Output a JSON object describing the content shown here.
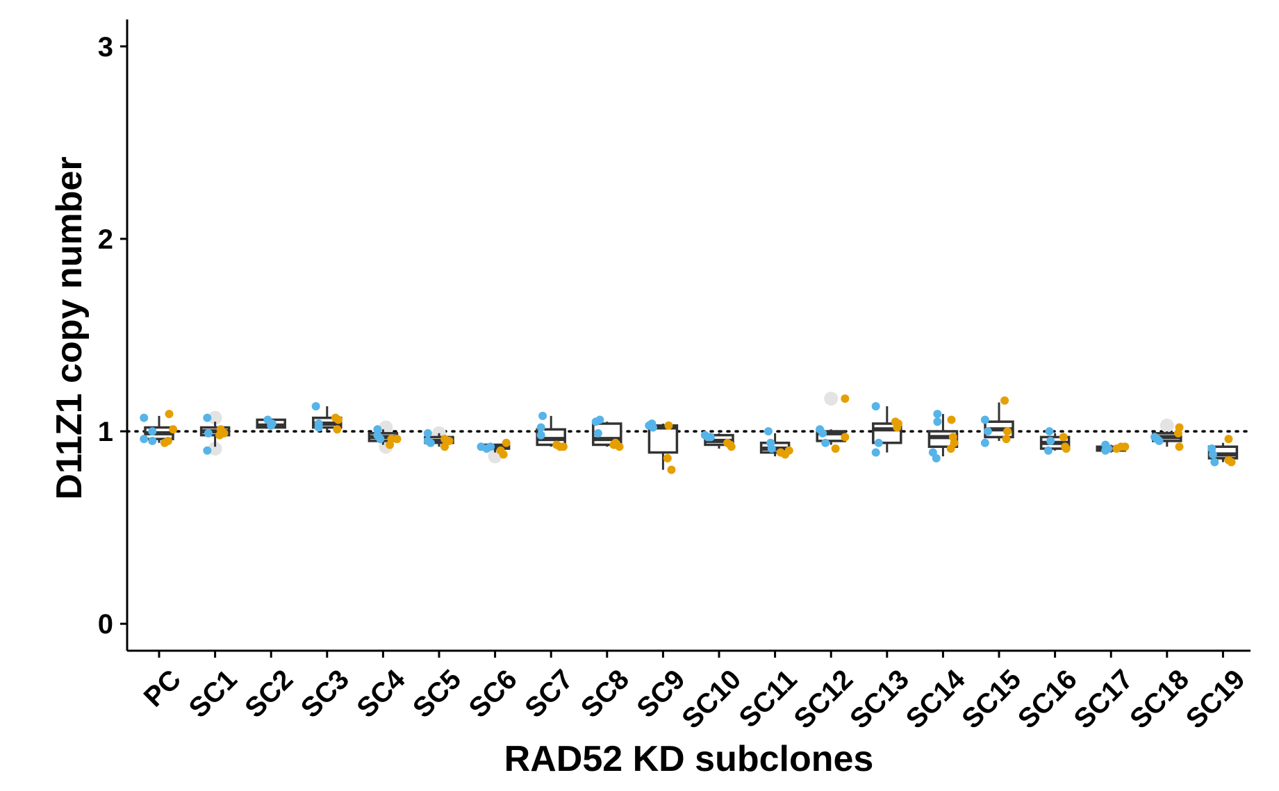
{
  "chart_data": {
    "type": "box",
    "xlabel": "RAD52 KD subclones",
    "ylabel": "D11Z1 copy number",
    "ylim": [
      -0.14,
      3.14
    ],
    "yticks": [
      0,
      1,
      2,
      3
    ],
    "reference_line": 1,
    "grid": false,
    "legend": "none",
    "colors": {
      "series_a": "#56B4E9",
      "series_b": "#E69F00",
      "outlier": "#E3E3E3",
      "box": "#333333"
    },
    "categories": [
      "PC",
      "SC1",
      "SC2",
      "SC3",
      "SC4",
      "SC5",
      "SC6",
      "SC7",
      "SC8",
      "SC9",
      "SC10",
      "SC11",
      "SC12",
      "SC13",
      "SC14",
      "SC15",
      "SC16",
      "SC17",
      "SC18",
      "SC19"
    ],
    "boxes": [
      {
        "q1": 0.96,
        "median": 0.99,
        "q3": 1.02,
        "lo": 0.94,
        "hi": 1.08
      },
      {
        "q1": 0.98,
        "median": 1.0,
        "q3": 1.02,
        "lo": 0.92,
        "hi": 1.05
      },
      {
        "q1": 1.02,
        "median": 1.03,
        "q3": 1.06,
        "lo": 1.02,
        "hi": 1.06
      },
      {
        "q1": 1.02,
        "median": 1.04,
        "q3": 1.07,
        "lo": 1.0,
        "hi": 1.13
      },
      {
        "q1": 0.95,
        "median": 0.97,
        "q3": 0.99,
        "lo": 0.93,
        "hi": 1.01
      },
      {
        "q1": 0.94,
        "median": 0.95,
        "q3": 0.97,
        "lo": 0.92,
        "hi": 0.99
      },
      {
        "q1": 0.91,
        "median": 0.92,
        "q3": 0.93,
        "lo": 0.89,
        "hi": 0.93
      },
      {
        "q1": 0.93,
        "median": 0.96,
        "q3": 1.01,
        "lo": 0.92,
        "hi": 1.08
      },
      {
        "q1": 0.93,
        "median": 0.96,
        "q3": 1.04,
        "lo": 0.92,
        "hi": 1.05
      },
      {
        "q1": 0.89,
        "median": 1.02,
        "q3": 1.03,
        "lo": 0.8,
        "hi": 1.04
      },
      {
        "q1": 0.93,
        "median": 0.95,
        "q3": 0.98,
        "lo": 0.91,
        "hi": 0.99
      },
      {
        "q1": 0.89,
        "median": 0.91,
        "q3": 0.94,
        "lo": 0.87,
        "hi": 0.99
      },
      {
        "q1": 0.95,
        "median": 0.99,
        "q3": 1.0,
        "lo": 0.93,
        "hi": 1.01
      },
      {
        "q1": 0.94,
        "median": 1.01,
        "q3": 1.04,
        "lo": 0.89,
        "hi": 1.13
      },
      {
        "q1": 0.92,
        "median": 0.97,
        "q3": 1.0,
        "lo": 0.87,
        "hi": 1.09
      },
      {
        "q1": 0.97,
        "median": 1.01,
        "q3": 1.05,
        "lo": 0.95,
        "hi": 1.15
      },
      {
        "q1": 0.91,
        "median": 0.94,
        "q3": 0.97,
        "lo": 0.9,
        "hi": 0.99
      },
      {
        "q1": 0.9,
        "median": 0.91,
        "q3": 0.92,
        "lo": 0.89,
        "hi": 0.93
      },
      {
        "q1": 0.95,
        "median": 0.97,
        "q3": 0.99,
        "lo": 0.92,
        "hi": 1.0
      },
      {
        "q1": 0.86,
        "median": 0.88,
        "q3": 0.92,
        "lo": 0.84,
        "hi": 0.94
      }
    ],
    "points_a": [
      {
        "i": 0,
        "dx": -0.27,
        "y": 1.07
      },
      {
        "i": 0,
        "dx": -0.27,
        "y": 0.96
      },
      {
        "i": 0,
        "dx": -0.12,
        "y": 1.0
      },
      {
        "i": 0,
        "dx": -0.12,
        "y": 0.95
      },
      {
        "i": 1,
        "dx": -0.14,
        "y": 1.07
      },
      {
        "i": 1,
        "dx": -0.14,
        "y": 0.9
      },
      {
        "i": 1,
        "dx": -0.12,
        "y": 0.99
      },
      {
        "i": 2,
        "dx": -0.06,
        "y": 1.06
      },
      {
        "i": 2,
        "dx": 0.02,
        "y": 1.04
      },
      {
        "i": 2,
        "dx": 0.0,
        "y": 1.03
      },
      {
        "i": 3,
        "dx": -0.2,
        "y": 1.13
      },
      {
        "i": 3,
        "dx": -0.15,
        "y": 1.04
      },
      {
        "i": 3,
        "dx": -0.15,
        "y": 1.02
      },
      {
        "i": 4,
        "dx": -0.1,
        "y": 1.01
      },
      {
        "i": 4,
        "dx": -0.1,
        "y": 0.98
      },
      {
        "i": 4,
        "dx": -0.05,
        "y": 0.96
      },
      {
        "i": 5,
        "dx": -0.2,
        "y": 0.99
      },
      {
        "i": 5,
        "dx": -0.2,
        "y": 0.95
      },
      {
        "i": 5,
        "dx": -0.15,
        "y": 0.94
      },
      {
        "i": 6,
        "dx": -0.25,
        "y": 0.92
      },
      {
        "i": 6,
        "dx": -0.15,
        "y": 0.91
      },
      {
        "i": 6,
        "dx": -0.08,
        "y": 0.92
      },
      {
        "i": 7,
        "dx": -0.15,
        "y": 1.08
      },
      {
        "i": 7,
        "dx": -0.18,
        "y": 1.02
      },
      {
        "i": 7,
        "dx": -0.18,
        "y": 0.98
      },
      {
        "i": 8,
        "dx": -0.2,
        "y": 1.05
      },
      {
        "i": 8,
        "dx": -0.13,
        "y": 1.06
      },
      {
        "i": 8,
        "dx": -0.16,
        "y": 0.99
      },
      {
        "i": 9,
        "dx": -0.25,
        "y": 1.03
      },
      {
        "i": 9,
        "dx": -0.2,
        "y": 1.04
      },
      {
        "i": 9,
        "dx": -0.18,
        "y": 1.02
      },
      {
        "i": 10,
        "dx": -0.25,
        "y": 0.98
      },
      {
        "i": 10,
        "dx": -0.2,
        "y": 0.97
      },
      {
        "i": 10,
        "dx": -0.15,
        "y": 0.97
      },
      {
        "i": 11,
        "dx": -0.12,
        "y": 1.0
      },
      {
        "i": 11,
        "dx": -0.08,
        "y": 0.94
      },
      {
        "i": 11,
        "dx": -0.06,
        "y": 0.91
      },
      {
        "i": 12,
        "dx": -0.2,
        "y": 1.01
      },
      {
        "i": 12,
        "dx": -0.15,
        "y": 0.99
      },
      {
        "i": 12,
        "dx": -0.1,
        "y": 0.94
      },
      {
        "i": 13,
        "dx": -0.2,
        "y": 1.13
      },
      {
        "i": 13,
        "dx": -0.2,
        "y": 0.89
      },
      {
        "i": 13,
        "dx": -0.15,
        "y": 0.94
      },
      {
        "i": 14,
        "dx": -0.1,
        "y": 1.09
      },
      {
        "i": 14,
        "dx": -0.1,
        "y": 1.05
      },
      {
        "i": 14,
        "dx": -0.18,
        "y": 0.89
      },
      {
        "i": 14,
        "dx": -0.12,
        "y": 0.86
      },
      {
        "i": 15,
        "dx": -0.25,
        "y": 1.06
      },
      {
        "i": 15,
        "dx": -0.25,
        "y": 0.94
      },
      {
        "i": 15,
        "dx": -0.2,
        "y": 1.0
      },
      {
        "i": 16,
        "dx": -0.1,
        "y": 1.0
      },
      {
        "i": 16,
        "dx": -0.12,
        "y": 0.9
      },
      {
        "i": 16,
        "dx": -0.08,
        "y": 0.95
      },
      {
        "i": 17,
        "dx": -0.1,
        "y": 0.93
      },
      {
        "i": 17,
        "dx": -0.1,
        "y": 0.9
      },
      {
        "i": 17,
        "dx": -0.05,
        "y": 0.91
      },
      {
        "i": 18,
        "dx": -0.22,
        "y": 0.97
      },
      {
        "i": 18,
        "dx": -0.18,
        "y": 0.96
      },
      {
        "i": 18,
        "dx": -0.14,
        "y": 0.95
      },
      {
        "i": 19,
        "dx": -0.2,
        "y": 0.91
      },
      {
        "i": 19,
        "dx": -0.18,
        "y": 0.88
      },
      {
        "i": 19,
        "dx": -0.15,
        "y": 0.84
      }
    ],
    "points_b": [
      {
        "i": 0,
        "dx": 0.18,
        "y": 1.09
      },
      {
        "i": 0,
        "dx": 0.25,
        "y": 1.01
      },
      {
        "i": 0,
        "dx": 0.16,
        "y": 0.95
      },
      {
        "i": 0,
        "dx": 0.1,
        "y": 0.94
      },
      {
        "i": 1,
        "dx": 0.1,
        "y": 1.01
      },
      {
        "i": 1,
        "dx": 0.16,
        "y": 0.99
      },
      {
        "i": 1,
        "dx": 0.08,
        "y": 0.98
      },
      {
        "i": 3,
        "dx": 0.15,
        "y": 1.07
      },
      {
        "i": 3,
        "dx": 0.2,
        "y": 1.06
      },
      {
        "i": 3,
        "dx": 0.18,
        "y": 1.01
      },
      {
        "i": 4,
        "dx": 0.15,
        "y": 0.96
      },
      {
        "i": 4,
        "dx": 0.25,
        "y": 0.96
      },
      {
        "i": 4,
        "dx": 0.12,
        "y": 0.93
      },
      {
        "i": 5,
        "dx": 0.1,
        "y": 0.96
      },
      {
        "i": 5,
        "dx": 0.18,
        "y": 0.95
      },
      {
        "i": 5,
        "dx": 0.1,
        "y": 0.92
      },
      {
        "i": 6,
        "dx": 0.1,
        "y": 0.9
      },
      {
        "i": 6,
        "dx": 0.2,
        "y": 0.94
      },
      {
        "i": 6,
        "dx": 0.15,
        "y": 0.88
      },
      {
        "i": 7,
        "dx": 0.1,
        "y": 0.93
      },
      {
        "i": 7,
        "dx": 0.16,
        "y": 0.92
      },
      {
        "i": 7,
        "dx": 0.22,
        "y": 0.92
      },
      {
        "i": 8,
        "dx": 0.15,
        "y": 0.94
      },
      {
        "i": 8,
        "dx": 0.22,
        "y": 0.92
      },
      {
        "i": 8,
        "dx": 0.12,
        "y": 0.93
      },
      {
        "i": 9,
        "dx": 0.1,
        "y": 1.03
      },
      {
        "i": 9,
        "dx": 0.08,
        "y": 0.86
      },
      {
        "i": 9,
        "dx": 0.15,
        "y": 0.8
      },
      {
        "i": 10,
        "dx": 0.15,
        "y": 0.94
      },
      {
        "i": 10,
        "dx": 0.2,
        "y": 0.93
      },
      {
        "i": 10,
        "dx": 0.22,
        "y": 0.92
      },
      {
        "i": 11,
        "dx": 0.1,
        "y": 0.89
      },
      {
        "i": 11,
        "dx": 0.18,
        "y": 0.88
      },
      {
        "i": 11,
        "dx": 0.25,
        "y": 0.9
      },
      {
        "i": 12,
        "dx": 0.25,
        "y": 1.17
      },
      {
        "i": 12,
        "dx": 0.25,
        "y": 0.97
      },
      {
        "i": 12,
        "dx": 0.08,
        "y": 0.91
      },
      {
        "i": 13,
        "dx": 0.15,
        "y": 1.05
      },
      {
        "i": 13,
        "dx": 0.2,
        "y": 1.04
      },
      {
        "i": 13,
        "dx": 0.18,
        "y": 1.02
      },
      {
        "i": 14,
        "dx": 0.15,
        "y": 1.06
      },
      {
        "i": 14,
        "dx": 0.18,
        "y": 0.97
      },
      {
        "i": 14,
        "dx": 0.2,
        "y": 0.94
      },
      {
        "i": 14,
        "dx": 0.14,
        "y": 0.91
      },
      {
        "i": 15,
        "dx": 0.1,
        "y": 1.16
      },
      {
        "i": 15,
        "dx": 0.15,
        "y": 1.0
      },
      {
        "i": 15,
        "dx": 0.13,
        "y": 0.96
      },
      {
        "i": 16,
        "dx": 0.15,
        "y": 0.97
      },
      {
        "i": 16,
        "dx": 0.2,
        "y": 0.91
      },
      {
        "i": 16,
        "dx": 0.18,
        "y": 0.92
      },
      {
        "i": 17,
        "dx": 0.1,
        "y": 0.91
      },
      {
        "i": 17,
        "dx": 0.18,
        "y": 0.92
      },
      {
        "i": 17,
        "dx": 0.25,
        "y": 0.92
      },
      {
        "i": 18,
        "dx": 0.22,
        "y": 1.02
      },
      {
        "i": 18,
        "dx": 0.2,
        "y": 0.99
      },
      {
        "i": 18,
        "dx": 0.22,
        "y": 0.92
      },
      {
        "i": 19,
        "dx": 0.1,
        "y": 0.96
      },
      {
        "i": 19,
        "dx": 0.1,
        "y": 0.85
      },
      {
        "i": 19,
        "dx": 0.15,
        "y": 0.84
      }
    ],
    "points_outlier": [
      {
        "i": 1,
        "dx": 0.0,
        "y": 1.07
      },
      {
        "i": 1,
        "dx": 0.0,
        "y": 0.91
      },
      {
        "i": 4,
        "dx": 0.05,
        "y": 1.02
      },
      {
        "i": 4,
        "dx": 0.05,
        "y": 0.92
      },
      {
        "i": 5,
        "dx": 0.0,
        "y": 0.99
      },
      {
        "i": 6,
        "dx": 0.0,
        "y": 0.87
      },
      {
        "i": 12,
        "dx": 0.0,
        "y": 1.17
      },
      {
        "i": 18,
        "dx": 0.0,
        "y": 1.03
      }
    ]
  }
}
